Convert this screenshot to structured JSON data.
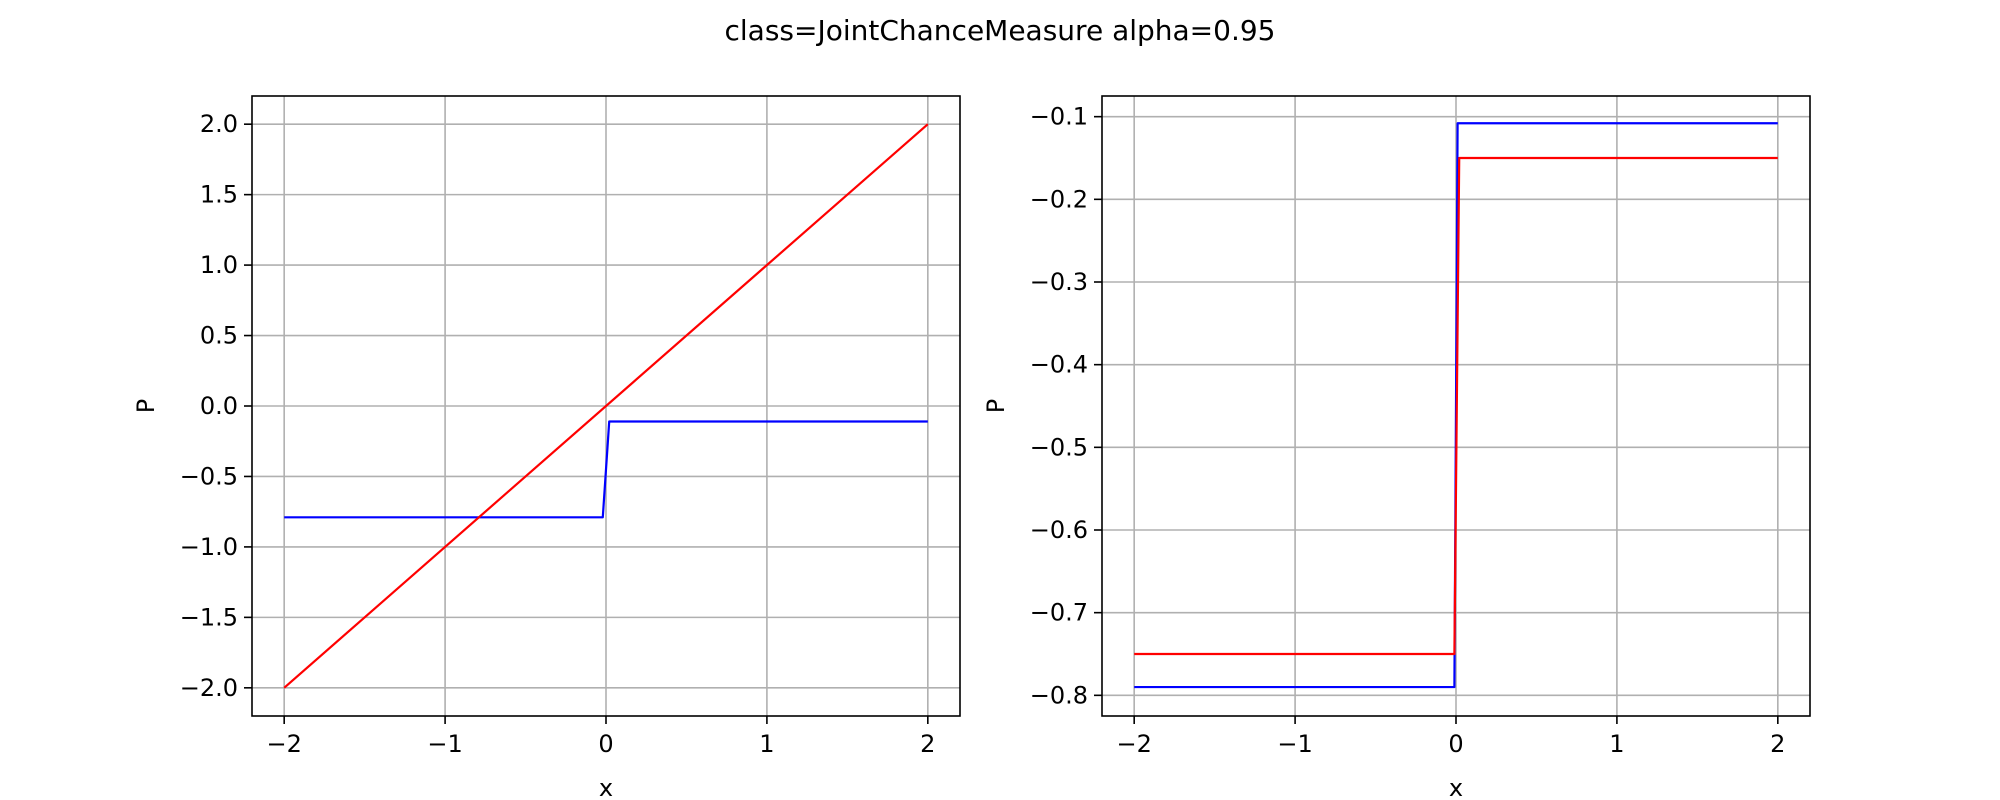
{
  "figure": {
    "title": "class=JointChanceMeasure alpha=0.95"
  },
  "chart_data": [
    {
      "type": "line",
      "xlabel": "x",
      "ylabel": "P",
      "xlim": [
        -2.2,
        2.2
      ],
      "ylim": [
        -2.2,
        2.2
      ],
      "xticks": [
        -2,
        -1,
        0,
        1,
        2
      ],
      "xtick_labels": [
        "−2",
        "−1",
        "0",
        "1",
        "2"
      ],
      "yticks": [
        -2.0,
        -1.5,
        -1.0,
        -0.5,
        0.0,
        0.5,
        1.0,
        1.5,
        2.0
      ],
      "ytick_labels": [
        "−2.0",
        "−1.5",
        "−1.0",
        "−0.5",
        "0.0",
        "0.5",
        "1.0",
        "1.5",
        "2.0"
      ],
      "grid": true,
      "series": [
        {
          "color": "#0000ff",
          "x": [
            -2,
            -0.02,
            0.02,
            2
          ],
          "y": [
            -0.79,
            -0.79,
            -0.11,
            -0.11
          ]
        },
        {
          "color": "#ff0000",
          "x": [
            -2,
            2
          ],
          "y": [
            -2,
            2
          ]
        }
      ]
    },
    {
      "type": "line",
      "xlabel": "x",
      "ylabel": "P",
      "xlim": [
        -2.2,
        2.2
      ],
      "ylim": [
        -0.825,
        -0.075
      ],
      "xticks": [
        -2,
        -1,
        0,
        1,
        2
      ],
      "xtick_labels": [
        "−2",
        "−1",
        "0",
        "1",
        "2"
      ],
      "yticks": [
        -0.8,
        -0.7,
        -0.6,
        -0.5,
        -0.4,
        -0.3,
        -0.2,
        -0.1
      ],
      "ytick_labels": [
        "−0.8",
        "−0.7",
        "−0.6",
        "−0.5",
        "−0.4",
        "−0.3",
        "−0.2",
        "−0.1"
      ],
      "grid": true,
      "series": [
        {
          "color": "#0000ff",
          "x": [
            -2,
            -0.01,
            0.01,
            2
          ],
          "y": [
            -0.79,
            -0.79,
            -0.108,
            -0.108
          ]
        },
        {
          "color": "#ff0000",
          "x": [
            -2,
            -0.01,
            0.02,
            2
          ],
          "y": [
            -0.75,
            -0.75,
            -0.15,
            -0.15
          ]
        }
      ]
    }
  ]
}
